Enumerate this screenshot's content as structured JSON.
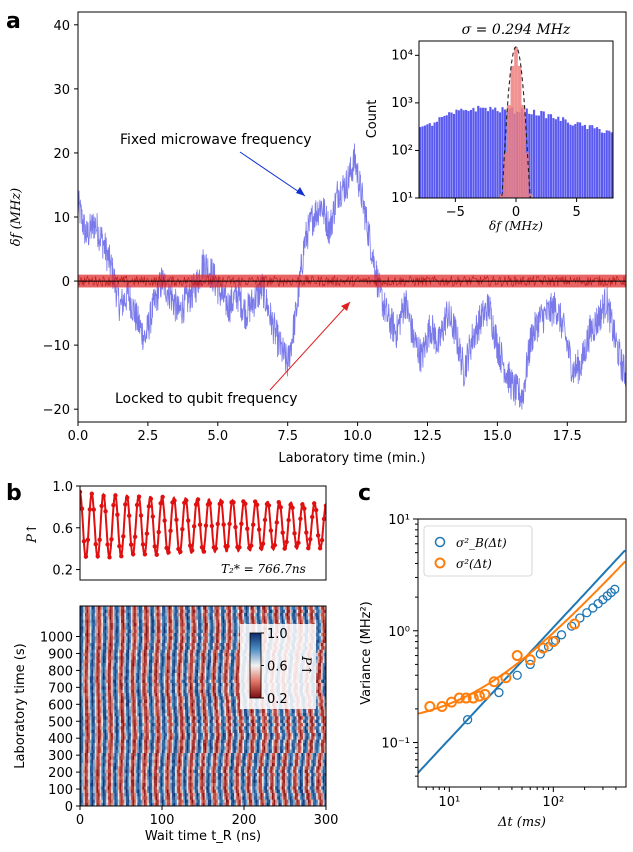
{
  "panels": {
    "a": "a",
    "b": "b",
    "c": "c"
  },
  "chart_data": [
    {
      "id": "a-main",
      "type": "line",
      "xlabel": "Laboratory time (min.)",
      "ylabel": "δf (MHz)",
      "xlim": [
        0,
        19.6
      ],
      "ylim": [
        -22,
        42
      ],
      "xticks": [
        0.0,
        2.5,
        5.0,
        7.5,
        10.0,
        12.5,
        15.0,
        17.5
      ],
      "xtick_labels": [
        "0.0",
        "2.5",
        "5.0",
        "7.5",
        "10.0",
        "12.5",
        "15.0",
        "17.5"
      ],
      "yticks": [
        -20,
        -10,
        0,
        10,
        20,
        30,
        40
      ],
      "ytick_labels": [
        "−20",
        "−10",
        "0",
        "10",
        "20",
        "30",
        "40"
      ],
      "annotations": [
        "Fixed microwave frequency",
        "Locked to qubit frequency"
      ],
      "series": [
        {
          "color": "#6a6ae8",
          "x": [
            0.0,
            0.3,
            0.6,
            0.9,
            1.2,
            1.5,
            1.8,
            2.1,
            2.4,
            2.7,
            3.0,
            3.3,
            3.6,
            3.9,
            4.2,
            4.5,
            4.8,
            5.1,
            5.4,
            5.7,
            6.0,
            6.3,
            6.6,
            6.9,
            7.2,
            7.5,
            7.8,
            8.1,
            8.4,
            8.7,
            9.0,
            9.3,
            9.6,
            9.9,
            10.2,
            10.5,
            10.8,
            11.1,
            11.4,
            11.7,
            12.0,
            12.3,
            12.6,
            12.9,
            13.2,
            13.5,
            13.8,
            14.1,
            14.4,
            14.7,
            15.0,
            15.3,
            15.6,
            15.9,
            16.2,
            16.5,
            16.8,
            17.1,
            17.4,
            17.7,
            18.0,
            18.3,
            18.6,
            18.9,
            19.2,
            19.5
          ],
          "y": [
            12,
            7,
            9,
            6,
            2,
            -4,
            -2,
            -6,
            -9,
            -4,
            0,
            -2,
            -5,
            -3,
            -1,
            3,
            1,
            -2,
            -4,
            -2,
            -5,
            -3,
            -1,
            -6,
            -10,
            -13,
            -5,
            6,
            10,
            12,
            8,
            14,
            15,
            19,
            12,
            5,
            -2,
            -6,
            -8,
            -3,
            -9,
            -12,
            -7,
            -10,
            -5,
            -8,
            -14,
            -9,
            -6,
            -4,
            -10,
            -14,
            -17,
            -18,
            -9,
            -6,
            -5,
            -4,
            -8,
            -14,
            -13,
            -8,
            -6,
            -3,
            -9,
            -14
          ]
        },
        {
          "color": "#e03030",
          "x": [
            0.0,
            19.6
          ],
          "y": [
            0,
            0
          ]
        }
      ]
    },
    {
      "id": "a-inset",
      "type": "bar",
      "title": "σ = 0.294 MHz",
      "xlabel": "δf (MHz)",
      "ylabel": "Count",
      "xlim": [
        -8,
        8
      ],
      "ylim": [
        10,
        20000
      ],
      "yscale": "log",
      "xticks": [
        -5,
        0,
        5
      ],
      "xtick_labels": [
        "−5",
        "0",
        "5"
      ],
      "ytick_labels": [
        "10¹",
        "10²",
        "10³",
        "10⁴"
      ],
      "series": [
        {
          "name": "fixed",
          "color": "#5a5af0",
          "x": [
            -7.5,
            -6.5,
            -5.5,
            -4.5,
            -3.5,
            -2.5,
            -1.5,
            -0.5,
            0.5,
            1.5,
            2.5,
            3.5,
            4.5,
            5.5,
            6.5,
            7.5
          ],
          "y": [
            300,
            420,
            560,
            680,
            760,
            780,
            720,
            700,
            690,
            640,
            560,
            470,
            390,
            330,
            290,
            260
          ]
        },
        {
          "name": "locked",
          "color": "#f08080",
          "x": [
            -1.2,
            -0.9,
            -0.6,
            -0.3,
            0.0,
            0.3,
            0.6,
            0.9,
            1.2
          ],
          "y": [
            12,
            90,
            900,
            6000,
            15000,
            6000,
            900,
            90,
            12
          ]
        }
      ]
    },
    {
      "id": "b-top",
      "type": "line",
      "ylabel": "P↑",
      "xlim": [
        0,
        300
      ],
      "ylim": [
        0.1,
        1.0
      ],
      "yticks": [
        0.2,
        0.6,
        1.0
      ],
      "ytick_labels": [
        "0.2",
        "0.6",
        "1.0"
      ],
      "annotation": "T₂* = 766.7ns",
      "series": [
        {
          "color": "#e01010",
          "period_ns": 14.3,
          "center": 0.62,
          "amplitude": 0.31
        }
      ]
    },
    {
      "id": "b-bottom",
      "type": "heatmap",
      "xlabel": "Wait time t_R (ns)",
      "ylabel": "Laboratory time (s)",
      "xlim": [
        0,
        300
      ],
      "ylim": [
        0,
        1180
      ],
      "xticks": [
        0,
        100,
        200,
        300
      ],
      "xtick_labels": [
        "0",
        "100",
        "200",
        "300"
      ],
      "yticks": [
        0,
        100,
        200,
        300,
        400,
        500,
        600,
        700,
        800,
        900,
        1000
      ],
      "ytick_labels": [
        "0",
        "100",
        "200",
        "300",
        "400",
        "500",
        "600",
        "700",
        "800",
        "900",
        "1000"
      ],
      "colorbar": {
        "label": "P↑",
        "ticks": [
          "1.0",
          "0.6",
          "0.2"
        ],
        "range": [
          0.2,
          1.0
        ]
      },
      "period_ns": 14.3
    },
    {
      "id": "c",
      "type": "scatter",
      "xlabel": "Δt (ms)",
      "ylabel": "Variance (MHz²)",
      "xscale": "log",
      "yscale": "log",
      "xlim": [
        5,
        500
      ],
      "ylim": [
        0.04,
        10
      ],
      "xtick_labels": [
        "10¹",
        "10²"
      ],
      "ytick_labels": [
        "10⁻¹",
        "10⁰",
        "10¹"
      ],
      "series": [
        {
          "name": "σ²_B(Δt)",
          "color": "#1f77b4",
          "x": [
            15,
            30,
            45,
            60,
            75,
            90,
            105,
            120,
            150,
            180,
            210,
            240,
            270,
            300,
            330,
            360,
            390
          ],
          "y": [
            0.16,
            0.28,
            0.4,
            0.5,
            0.62,
            0.72,
            0.82,
            0.92,
            1.1,
            1.3,
            1.45,
            1.6,
            1.75,
            1.9,
            2.05,
            2.2,
            2.35
          ]
        },
        {
          "name": "σ²(Δt)",
          "color": "#ff7f0e",
          "x": [
            6.5,
            8.5,
            10.5,
            12.5,
            14.5,
            17,
            19.5,
            22,
            27,
            35,
            45,
            60,
            80,
            100,
            160
          ],
          "y": [
            0.21,
            0.21,
            0.23,
            0.25,
            0.25,
            0.25,
            0.26,
            0.27,
            0.35,
            0.38,
            0.6,
            0.55,
            0.7,
            0.8,
            1.15
          ]
        }
      ]
    }
  ]
}
